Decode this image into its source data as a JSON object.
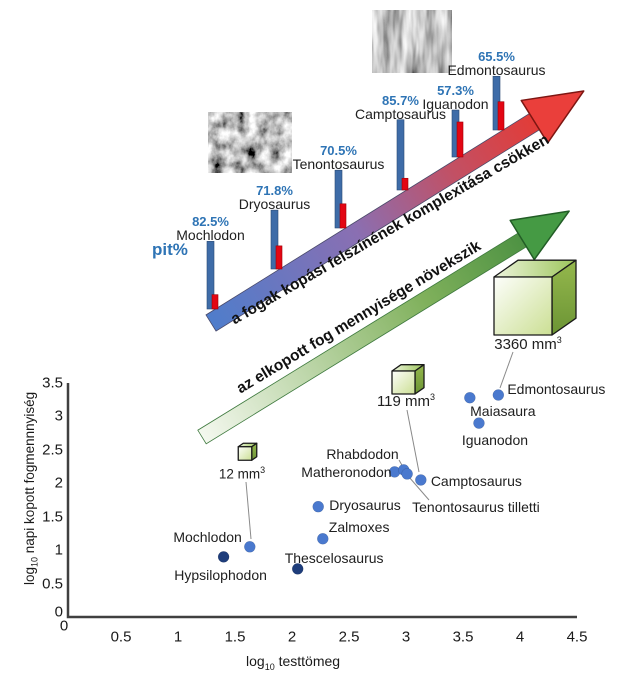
{
  "figure": {
    "pit_axis_label": "pit%",
    "upper_arrow_text": "a fogak kopási felszínének komplexitása csökken",
    "lower_arrow_text": "az elkopott fog mennyisége növekszik",
    "micrographs": [
      "pitted-enamel-microwear-micrograph",
      "scratched-enamel-microwear-micrograph"
    ],
    "colors": {
      "percent_text": "#2E74B5",
      "blue_bar": "#3E6CA8",
      "red_bar": "#E30613",
      "arrow_gradient_start": "#4F7DCB",
      "arrow_gradient_end": "#E23C38",
      "green_arrow": "#4E9243",
      "point_light": "#4A79CE",
      "point_dark": "#1E3D7B"
    }
  },
  "chart_data": [
    {
      "type": "bar",
      "title": "pit% microwear bars along ascending arrow",
      "categories": [
        "Mochlodon",
        "Dryosaurus",
        "Tenontosaurus",
        "Camptosaurus",
        "Iguanodon",
        "Edmontosaurus"
      ],
      "series": [
        {
          "label": "pit% (blue bar)",
          "values": [
            82.5,
            71.8,
            70.5,
            85.7,
            57.3,
            65.5
          ]
        },
        {
          "label": "(red bar, unlabeled complement)",
          "values": [
            17.5,
            28.2,
            29.5,
            14.3,
            42.7,
            34.5
          ]
        }
      ],
      "value_suffix": "%"
    },
    {
      "type": "scatter",
      "xlabel": "log10 testtömeg",
      "ylabel": "log10 napi kopott fogmennnyiség",
      "xlabel_parts": {
        "prefix": "log",
        "sub": "10",
        "rest": " testtömeg"
      },
      "ylabel_parts": {
        "prefix": "log",
        "sub": "10",
        "rest": " napi kopott fogmennnyiség"
      },
      "xlim": [
        0,
        4.5
      ],
      "ylim": [
        0,
        3.5
      ],
      "xticks": [
        0,
        0.5,
        1,
        1.5,
        2,
        2.5,
        3,
        3.5,
        4,
        4.5
      ],
      "yticks": [
        0,
        0.5,
        1,
        1.5,
        2,
        2.5,
        3,
        3.5
      ],
      "grid": false,
      "points": [
        {
          "name": "Hypsilophodon",
          "x": 1.4,
          "y": 0.9,
          "shade": "dark"
        },
        {
          "name": "Mochlodon",
          "x": 1.63,
          "y": 1.05,
          "shade": "light"
        },
        {
          "name": "Thescelosaurus",
          "x": 2.05,
          "y": 0.72,
          "shade": "dark"
        },
        {
          "name": "Zalmoxes",
          "x": 2.27,
          "y": 1.17,
          "shade": "light"
        },
        {
          "name": "Dryosaurus",
          "x": 2.23,
          "y": 1.65,
          "shade": "light"
        },
        {
          "name": "Matheronodon",
          "x": 2.9,
          "y": 2.17,
          "shade": "light"
        },
        {
          "name": "Rhabdodon",
          "x": 2.98,
          "y": 2.2,
          "shade": "light"
        },
        {
          "name": "Tenontosaurus tilletti",
          "x": 3.01,
          "y": 2.14,
          "shade": "light"
        },
        {
          "name": "Camptosaurus",
          "x": 3.13,
          "y": 2.05,
          "shade": "light"
        },
        {
          "name": "Iguanodon",
          "x": 3.64,
          "y": 2.9,
          "shade": "light"
        },
        {
          "name": "Maiasaura",
          "x": 3.56,
          "y": 3.28,
          "shade": "light"
        },
        {
          "name": "Edmontosaurus",
          "x": 3.81,
          "y": 3.32,
          "shade": "light"
        }
      ],
      "volume_cubes": [
        {
          "volume_label": "12 mm",
          "sup": "3",
          "points_to": "Mochlodon"
        },
        {
          "volume_label": "119 mm",
          "sup": "3",
          "points_to": "Camptosaurus"
        },
        {
          "volume_label": "3360 mm",
          "sup": "3",
          "points_to": "Edmontosaurus"
        }
      ]
    }
  ]
}
